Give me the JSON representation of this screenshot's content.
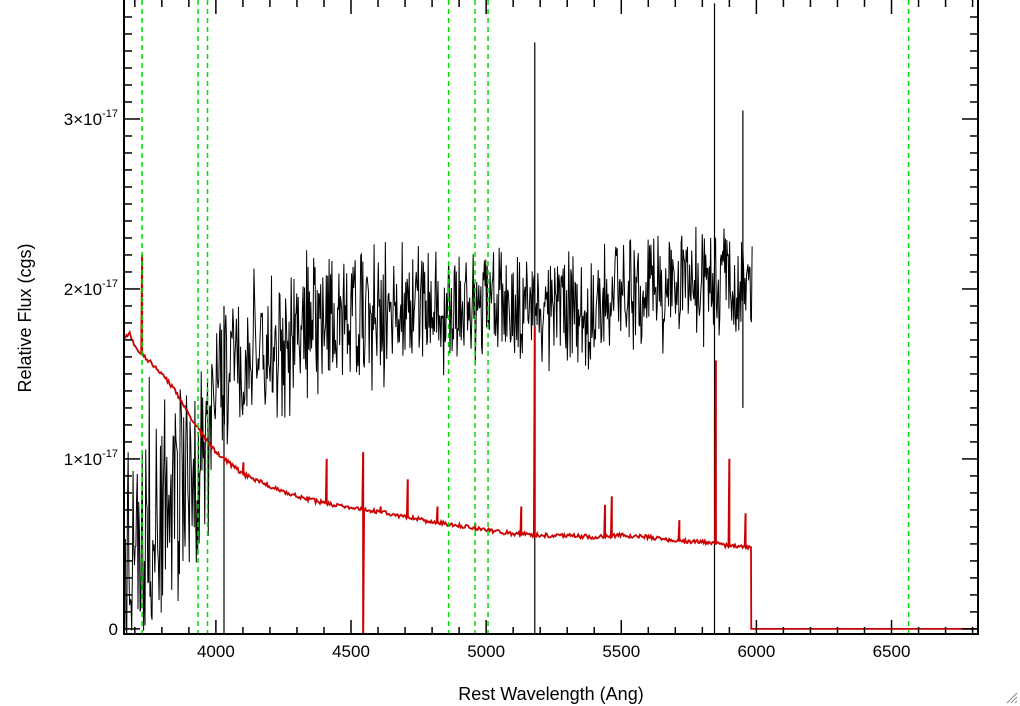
{
  "chart_data": {
    "type": "line",
    "title": "",
    "xlabel": "Rest Wavelength (Ang)",
    "ylabel": "Relative Flux (cgs)",
    "xlim": [
      3660,
      6820
    ],
    "ylim": [
      -3e-19,
      3.7e-17
    ],
    "x_ticks": [
      {
        "value": 4000,
        "label": "4000"
      },
      {
        "value": 4500,
        "label": "4500"
      },
      {
        "value": 5000,
        "label": "5000"
      },
      {
        "value": 5500,
        "label": "5500"
      },
      {
        "value": 6000,
        "label": "6000"
      },
      {
        "value": 6500,
        "label": "6500"
      }
    ],
    "y_ticks": [
      {
        "value": 0,
        "mantissa": "0",
        "exponent": ""
      },
      {
        "value": 1e-17,
        "mantissa": "1×10",
        "exponent": "-17"
      },
      {
        "value": 2e-17,
        "mantissa": "2×10",
        "exponent": "-17"
      },
      {
        "value": 3e-17,
        "mantissa": "3×10",
        "exponent": "-17"
      }
    ],
    "grid": false,
    "legend": "none",
    "series": [
      {
        "color": "#000000",
        "style": "solid",
        "description_x_range": [
          3665,
          5985
        ],
        "envelope": {
          "x": [
            3665,
            3700,
            3750,
            3800,
            3850,
            3900,
            3950,
            4000,
            4100,
            4200,
            4300,
            4400,
            4500,
            4600,
            4700,
            4800,
            4900,
            5000,
            5100,
            5200,
            5300,
            5400,
            5500,
            5600,
            5700,
            5800,
            5900,
            5985
          ],
          "mean": [
            5.5e-18,
            6e-18,
            6.5e-18,
            7e-18,
            7.5e-18,
            8e-18,
            9e-18,
            1.4e-17,
            1.6e-17,
            1.7e-17,
            1.75e-17,
            1.8e-17,
            1.82e-17,
            1.85e-17,
            1.88e-17,
            1.9e-17,
            1.92e-17,
            1.93e-17,
            1.92e-17,
            1.9e-17,
            1.88e-17,
            1.9e-17,
            1.95e-17,
            2e-17,
            2.02e-17,
            2.05e-17,
            2.05e-17,
            2e-17
          ],
          "amplitude": [
            9e-18,
            9e-18,
            9e-18,
            9e-18,
            9e-18,
            9e-18,
            8.5e-18,
            6e-18,
            5e-18,
            5e-18,
            5e-18,
            5e-18,
            5e-18,
            4.8e-18,
            4.8e-18,
            4.5e-18,
            4.5e-18,
            4.2e-18,
            4.2e-18,
            4.2e-18,
            4.2e-18,
            4.2e-18,
            4.2e-18,
            4.2e-18,
            4.2e-18,
            4.2e-18,
            4e-18,
            3.5e-18
          ]
        },
        "spikes": [
          {
            "x": 5180,
            "low": -3e-19,
            "high": 3.45e-17
          },
          {
            "x": 5845,
            "low": -3e-19,
            "high": 3.68e-17
          },
          {
            "x": 4030,
            "low": -3e-19,
            "high": 1.9e-17
          },
          {
            "x": 5950,
            "low": 1.3e-17,
            "high": 3.05e-17
          }
        ]
      },
      {
        "color": "#cc0000",
        "style": "solid",
        "x": [
          3665,
          3680,
          3700,
          3750,
          3800,
          3850,
          3900,
          3950,
          4000,
          4100,
          4200,
          4300,
          4400,
          4500,
          4600,
          4700,
          4800,
          4900,
          5000,
          5100,
          5200,
          5300,
          5400,
          5500,
          5600,
          5700,
          5800,
          5900,
          5980,
          5981,
          6820
        ],
        "y": [
          1.72e-17,
          1.74e-17,
          1.66e-17,
          1.58e-17,
          1.5e-17,
          1.4e-17,
          1.26e-17,
          1.14e-17,
          1.04e-17,
          9.1e-18,
          8.4e-18,
          7.8e-18,
          7.4e-18,
          7.1e-18,
          6.9e-18,
          6.6e-18,
          6.3e-18,
          6.1e-18,
          5.8e-18,
          5.6e-18,
          5.5e-18,
          5.5e-18,
          5.4e-18,
          5.5e-18,
          5.4e-18,
          5.2e-18,
          5.1e-18,
          4.9e-18,
          4.8e-18,
          0.0,
          0.0
        ],
        "emission_lines": [
          {
            "x": 3727,
            "peak": 2.2e-17
          },
          {
            "x": 4102,
            "peak": 9.8e-18
          },
          {
            "x": 4410,
            "peak": 1e-17
          },
          {
            "x": 4545,
            "peak": 1.04e-17,
            "dip": -3e-19
          },
          {
            "x": 4610,
            "peak": 7.2e-18
          },
          {
            "x": 4710,
            "peak": 8.8e-18
          },
          {
            "x": 4820,
            "peak": 7.2e-18
          },
          {
            "x": 4960,
            "peak": 6.2e-18
          },
          {
            "x": 5130,
            "peak": 7.2e-18
          },
          {
            "x": 5180,
            "peak": 1.78e-17
          },
          {
            "x": 5440,
            "peak": 7.3e-18
          },
          {
            "x": 5465,
            "peak": 7.8e-18
          },
          {
            "x": 5715,
            "peak": 6.4e-18
          },
          {
            "x": 5850,
            "peak": 1.58e-17
          },
          {
            "x": 5900,
            "peak": 1e-17
          },
          {
            "x": 5960,
            "peak": 6.8e-18
          }
        ]
      }
    ],
    "vertical_lines": {
      "color": "#00dd00",
      "style": "dashed",
      "x": [
        3727,
        3934,
        3969,
        4861,
        4959,
        5007,
        6563
      ]
    }
  }
}
